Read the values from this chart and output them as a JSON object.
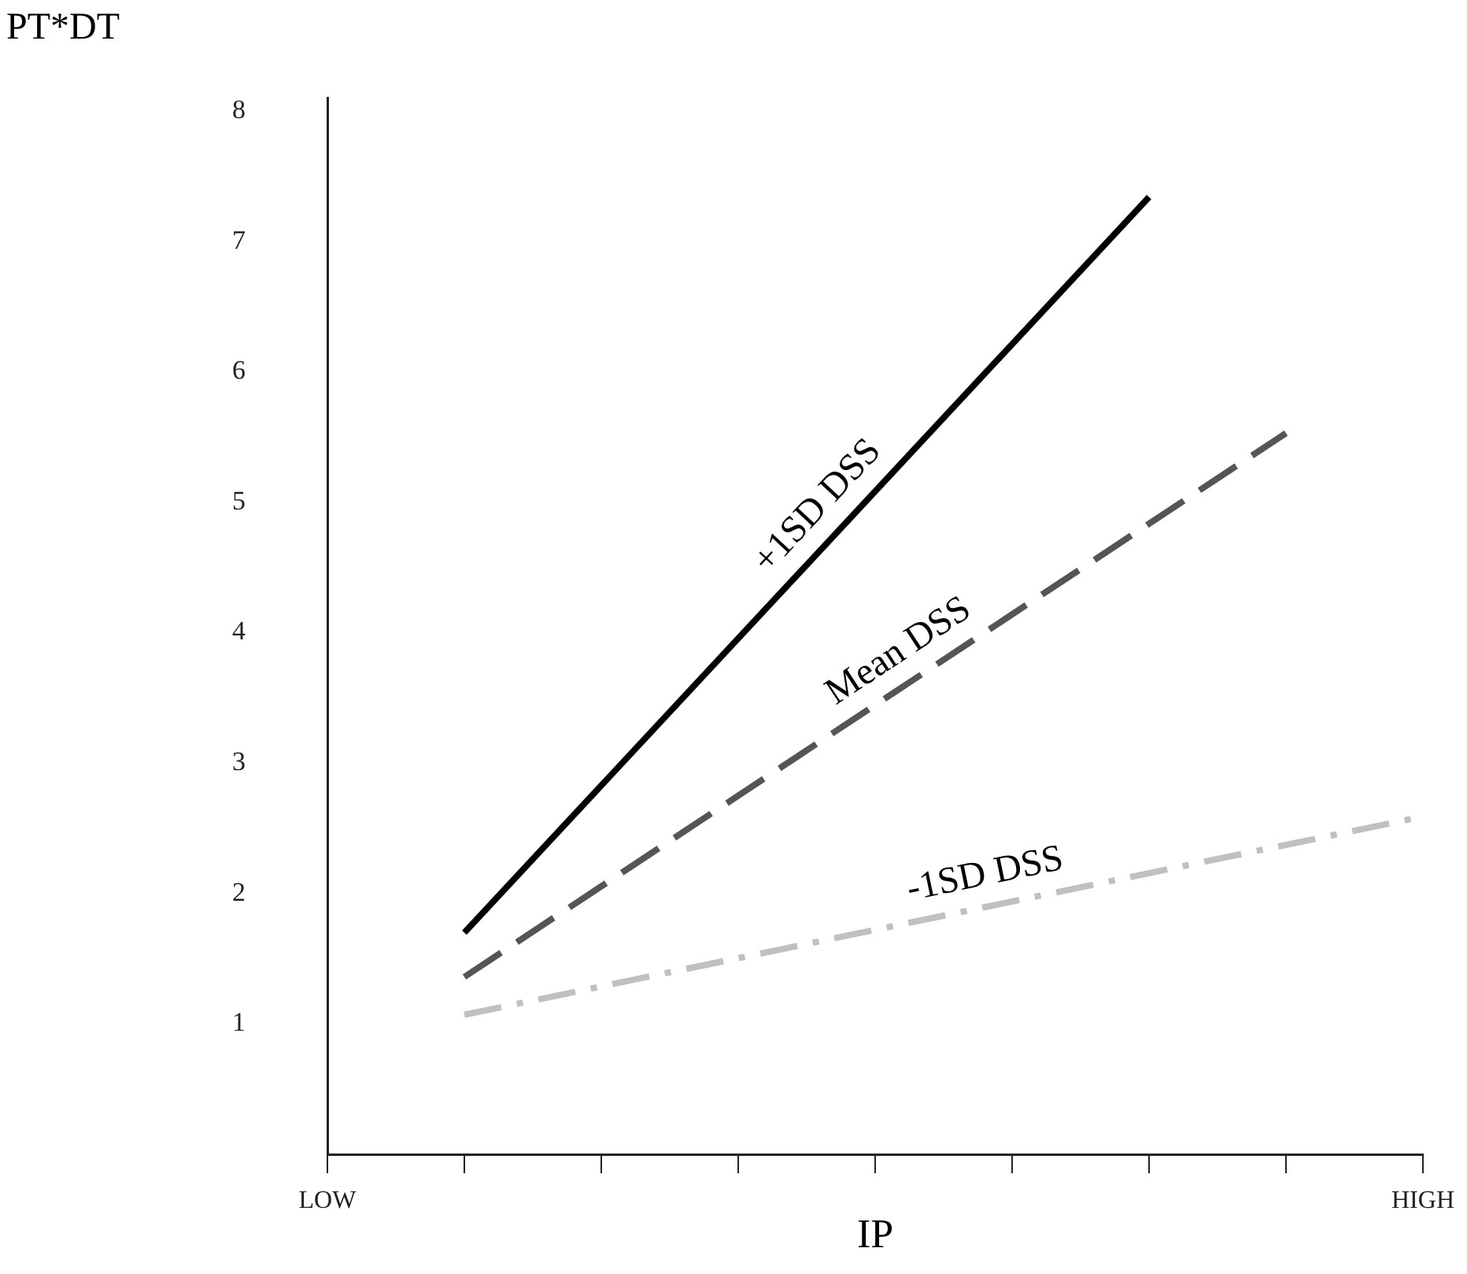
{
  "chart_data": {
    "type": "line",
    "xlabel": "IP",
    "ylabel": "PT*DT",
    "categories": [
      "LOW",
      null,
      null,
      null,
      null,
      null,
      null,
      null,
      "HIGH"
    ],
    "ylim": [
      0,
      8.1
    ],
    "yticks": [
      1,
      2,
      3,
      4,
      5,
      6,
      7,
      8
    ],
    "grid": false,
    "legend": false,
    "marker": "none",
    "series": [
      {
        "name": "+1SD DSS",
        "color": "#000000",
        "line_style": "solid",
        "values": [
          null,
          1.7,
          null,
          null,
          null,
          null,
          7.34,
          null,
          null
        ]
      },
      {
        "name": "Mean DSS",
        "color": "#555555",
        "line_style": "dashed",
        "values": [
          null,
          1.36,
          null,
          null,
          null,
          null,
          null,
          5.53,
          null
        ]
      },
      {
        "name": "-1SD DSS",
        "color": "#c0c0c0",
        "line_style": "dashdot",
        "values": [
          null,
          1.07,
          null,
          null,
          null,
          null,
          null,
          null,
          2.59
        ]
      }
    ]
  }
}
